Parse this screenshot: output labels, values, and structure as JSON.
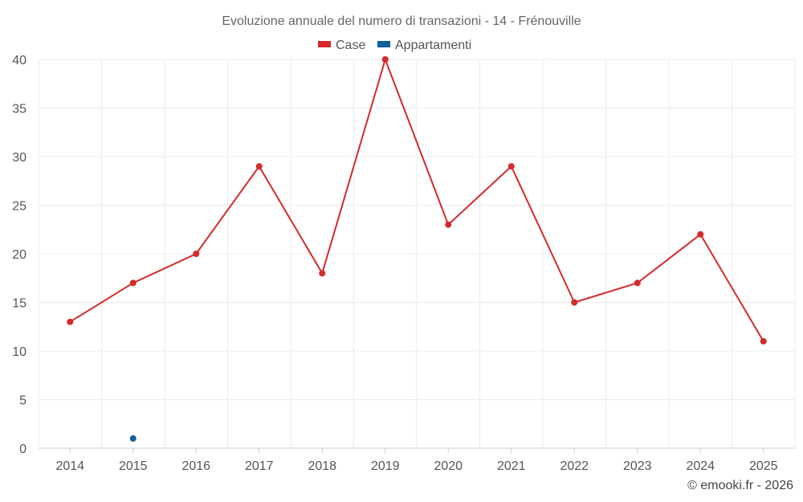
{
  "chart_data": {
    "type": "line",
    "title": "Evoluzione annuale del numero di transazioni - 14 - Frénouville",
    "categories": [
      "2014",
      "2015",
      "2016",
      "2017",
      "2018",
      "2019",
      "2020",
      "2021",
      "2022",
      "2023",
      "2024",
      "2025"
    ],
    "series": [
      {
        "name": "Case",
        "color": "#d42a2a",
        "values": [
          13,
          17,
          20,
          29,
          18,
          40,
          23,
          29,
          15,
          17,
          22,
          11
        ]
      },
      {
        "name": "Appartamenti",
        "color": "#0e5f9a",
        "values": [
          null,
          1,
          null,
          null,
          null,
          null,
          null,
          null,
          null,
          null,
          null,
          null
        ]
      }
    ],
    "ylim": [
      0,
      40
    ],
    "yticks": [
      0,
      5,
      10,
      15,
      20,
      25,
      30,
      35,
      40
    ],
    "xlabel": "",
    "ylabel": "",
    "grid": true,
    "legend_position": "top-center"
  },
  "credit": "© emooki.fr - 2026"
}
